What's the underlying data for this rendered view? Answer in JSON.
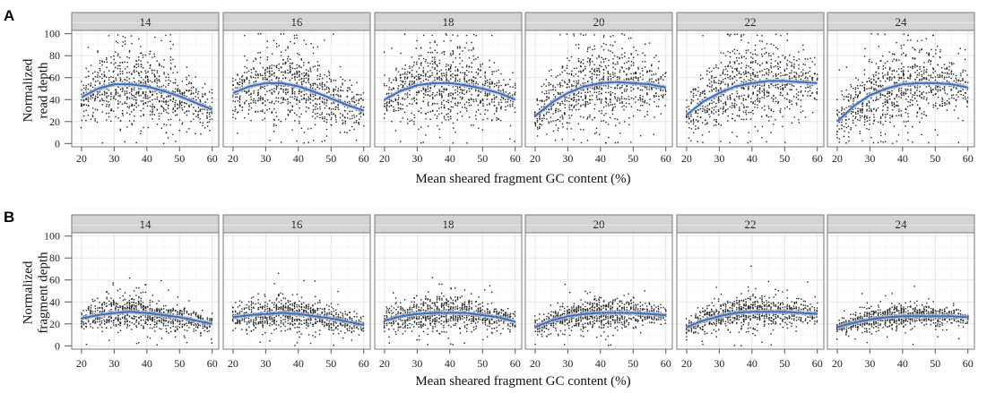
{
  "chart_data": [
    {
      "type": "scatter",
      "panel_label": "A",
      "ylabel": [
        "Normalized",
        "read depth"
      ],
      "xlabel": "Mean sheared fragment GC content (%)",
      "xlim": [
        17,
        62
      ],
      "ylim": [
        -3,
        103
      ],
      "x_ticks": [
        "20",
        "30",
        "40",
        "50",
        "60"
      ],
      "y_ticks": [
        "0",
        "20",
        "40",
        "60",
        "80",
        "100"
      ],
      "grid": true,
      "smooth_color": "#3a6fc4",
      "band_color": "#bfc6d1",
      "point_color": "#222222",
      "facets": [
        {
          "label": "14",
          "x": [
            20,
            25,
            30,
            35,
            40,
            45,
            50,
            55,
            60
          ],
          "y": [
            42,
            50,
            54,
            54,
            52,
            48,
            43,
            37,
            31
          ],
          "spread": [
            10,
            14,
            16,
            17,
            16,
            15,
            13,
            11,
            8
          ],
          "x_range": [
            20,
            60
          ]
        },
        {
          "label": "16",
          "x": [
            20,
            25,
            30,
            35,
            40,
            45,
            50,
            55,
            60
          ],
          "y": [
            46,
            52,
            55,
            55,
            52,
            47,
            41,
            35,
            30
          ],
          "spread": [
            10,
            14,
            16,
            17,
            16,
            15,
            13,
            11,
            8
          ],
          "x_range": [
            20,
            60
          ]
        },
        {
          "label": "18",
          "x": [
            20,
            25,
            30,
            35,
            40,
            45,
            50,
            55,
            60
          ],
          "y": [
            40,
            48,
            53,
            55,
            55,
            53,
            50,
            46,
            40
          ],
          "spread": [
            10,
            14,
            16,
            18,
            18,
            16,
            14,
            12,
            9
          ],
          "x_range": [
            20,
            60
          ]
        },
        {
          "label": "20",
          "x": [
            20,
            25,
            30,
            35,
            40,
            45,
            50,
            55,
            60
          ],
          "y": [
            25,
            37,
            46,
            52,
            55,
            56,
            55,
            54,
            51
          ],
          "spread": [
            8,
            12,
            15,
            17,
            18,
            18,
            16,
            13,
            9
          ],
          "x_range": [
            20,
            60
          ]
        },
        {
          "label": "22",
          "x": [
            20,
            25,
            30,
            35,
            40,
            45,
            50,
            55,
            60
          ],
          "y": [
            26,
            38,
            46,
            52,
            55,
            57,
            57,
            56,
            55
          ],
          "spread": [
            8,
            12,
            15,
            17,
            18,
            18,
            16,
            13,
            9
          ],
          "x_range": [
            20,
            60
          ]
        },
        {
          "label": "24",
          "x": [
            20,
            25,
            30,
            35,
            40,
            45,
            50,
            55,
            60
          ],
          "y": [
            20,
            34,
            44,
            50,
            54,
            55,
            55,
            54,
            51
          ],
          "spread": [
            8,
            12,
            15,
            17,
            18,
            18,
            16,
            13,
            9
          ],
          "x_range": [
            20,
            60
          ]
        }
      ]
    },
    {
      "type": "scatter",
      "panel_label": "B",
      "ylabel": [
        "Normalized",
        "fragment depth"
      ],
      "xlabel": "Mean sheared fragment GC content (%)",
      "xlim": [
        17,
        62
      ],
      "ylim": [
        -3,
        103
      ],
      "x_ticks": [
        "20",
        "30",
        "40",
        "50",
        "60"
      ],
      "y_ticks": [
        "0",
        "20",
        "40",
        "60",
        "80",
        "100"
      ],
      "grid": true,
      "smooth_color": "#3a6fc4",
      "band_color": "#bfc6d1",
      "point_color": "#222222",
      "facets": [
        {
          "label": "14",
          "x": [
            20,
            25,
            30,
            35,
            40,
            45,
            50,
            55,
            60
          ],
          "y": [
            25,
            28,
            30,
            31,
            30,
            28,
            26,
            23,
            20
          ],
          "spread": [
            5,
            6,
            7,
            7,
            7,
            6,
            6,
            5,
            4
          ],
          "x_range": [
            20,
            60
          ]
        },
        {
          "label": "16",
          "x": [
            20,
            25,
            30,
            35,
            40,
            45,
            50,
            55,
            60
          ],
          "y": [
            26,
            28,
            29,
            30,
            29,
            27,
            25,
            22,
            19
          ],
          "spread": [
            5,
            6,
            7,
            7,
            7,
            6,
            6,
            5,
            4
          ],
          "x_range": [
            20,
            60
          ]
        },
        {
          "label": "18",
          "x": [
            20,
            25,
            30,
            35,
            40,
            45,
            50,
            55,
            60
          ],
          "y": [
            23,
            27,
            29,
            30,
            30,
            30,
            28,
            26,
            22
          ],
          "spread": [
            5,
            6,
            7,
            8,
            8,
            7,
            6,
            5,
            4
          ],
          "x_range": [
            20,
            60
          ]
        },
        {
          "label": "20",
          "x": [
            20,
            25,
            30,
            35,
            40,
            45,
            50,
            55,
            60
          ],
          "y": [
            17,
            23,
            27,
            29,
            30,
            30,
            30,
            29,
            28
          ],
          "spread": [
            4,
            5,
            6,
            7,
            7,
            7,
            6,
            5,
            4
          ],
          "x_range": [
            20,
            60
          ]
        },
        {
          "label": "22",
          "x": [
            20,
            25,
            30,
            35,
            40,
            45,
            50,
            55,
            60
          ],
          "y": [
            17,
            23,
            27,
            30,
            31,
            31,
            31,
            30,
            29
          ],
          "spread": [
            4,
            5,
            6,
            7,
            8,
            7,
            6,
            5,
            4
          ],
          "x_range": [
            20,
            60
          ]
        },
        {
          "label": "24",
          "x": [
            20,
            25,
            30,
            35,
            40,
            45,
            50,
            55,
            60
          ],
          "y": [
            17,
            21,
            24,
            26,
            27,
            27,
            27,
            27,
            26
          ],
          "spread": [
            3,
            4,
            5,
            5,
            5,
            5,
            5,
            4,
            3
          ],
          "x_range": [
            20,
            60
          ]
        }
      ]
    }
  ]
}
